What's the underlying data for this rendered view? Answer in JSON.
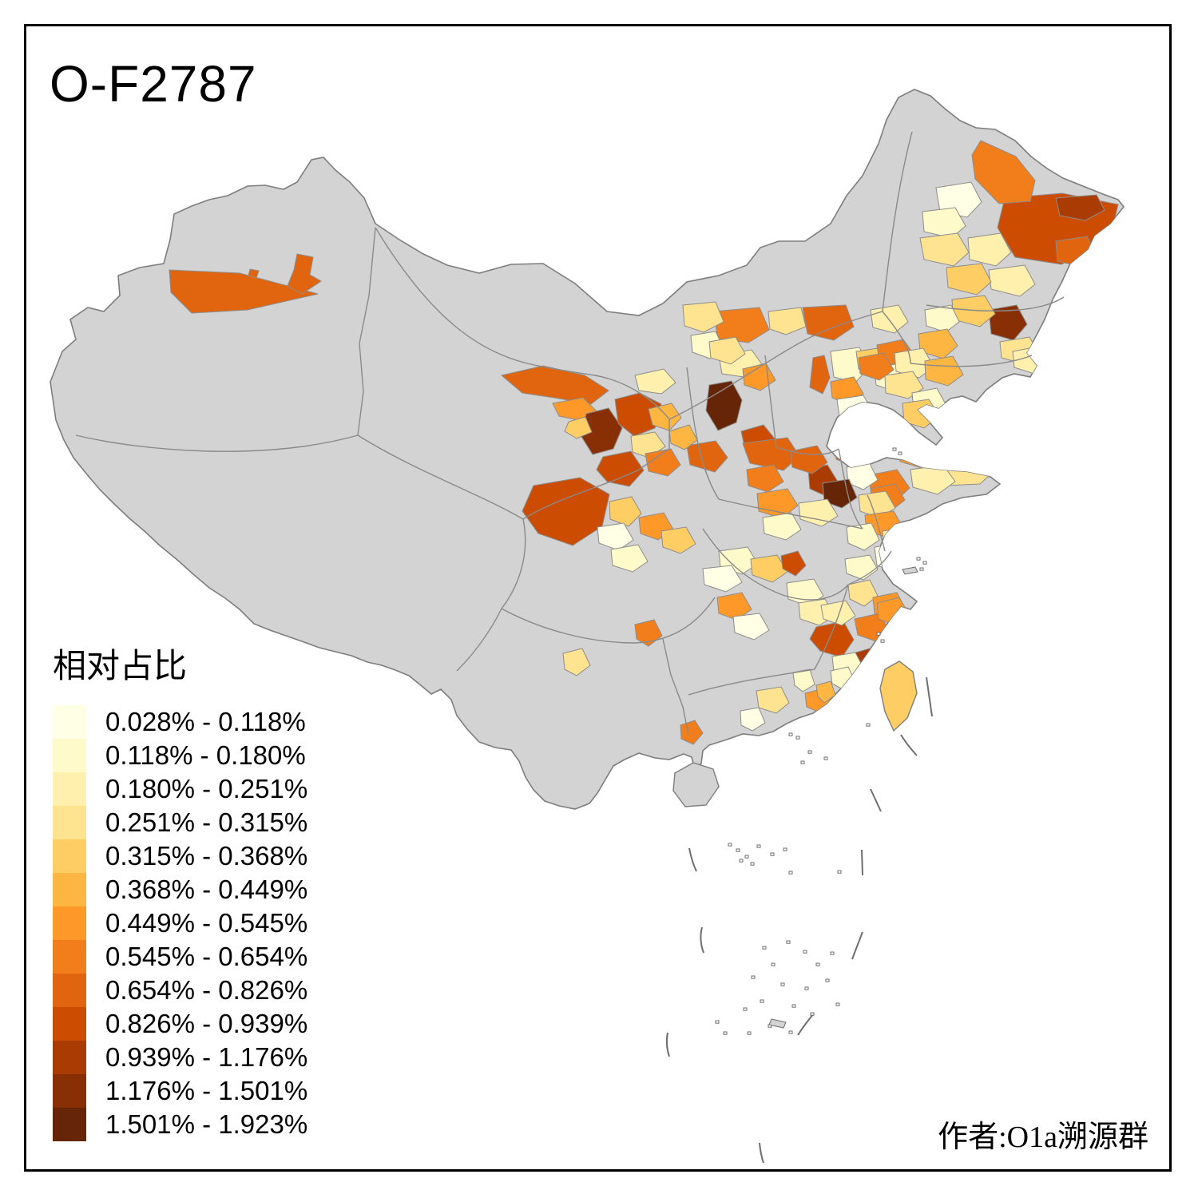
{
  "title": "O-F2787",
  "legend": {
    "title": "相对占比",
    "items": [
      {
        "label": "0.028% - 0.118%",
        "color": "#FFFFE5"
      },
      {
        "label": "0.118% - 0.180%",
        "color": "#FFFACA"
      },
      {
        "label": "0.180% - 0.251%",
        "color": "#FFF0AE"
      },
      {
        "label": "0.251% - 0.315%",
        "color": "#FEE391"
      },
      {
        "label": "0.315% - 0.368%",
        "color": "#FECE65"
      },
      {
        "label": "0.368% - 0.449%",
        "color": "#FEB642"
      },
      {
        "label": "0.449% - 0.545%",
        "color": "#FE9929"
      },
      {
        "label": "0.545% - 0.654%",
        "color": "#F27E1B"
      },
      {
        "label": "0.654% - 0.826%",
        "color": "#E1640E"
      },
      {
        "label": "0.826% - 0.939%",
        "color": "#CC4C02"
      },
      {
        "label": "0.939% - 1.176%",
        "color": "#AA3C03"
      },
      {
        "label": "1.176% - 1.501%",
        "color": "#882F05"
      },
      {
        "label": "1.501% - 1.923%",
        "color": "#662506"
      }
    ]
  },
  "attribution": "作者:O1a溯源群",
  "chart_data": {
    "type": "choropleth_map",
    "region": "China, prefecture-level divisions",
    "title": "O-F2787",
    "legend_title": "相对占比",
    "unit": "%",
    "class_breaks_percent": [
      0.028,
      0.118,
      0.18,
      0.251,
      0.315,
      0.368,
      0.449,
      0.545,
      0.654,
      0.826,
      0.939,
      1.176,
      1.501,
      1.923
    ],
    "class_labels": [
      "0.028% - 0.118%",
      "0.118% - 0.180%",
      "0.180% - 0.251%",
      "0.251% - 0.315%",
      "0.315% - 0.368%",
      "0.368% - 0.449%",
      "0.449% - 0.545%",
      "0.545% - 0.654%",
      "0.654% - 0.826%",
      "0.826% - 0.939%",
      "0.939% - 1.176%",
      "1.176% - 1.501%",
      "1.501% - 1.923%"
    ],
    "palette": [
      "#FFFFE5",
      "#FFFACA",
      "#FFF0AE",
      "#FEE391",
      "#FECE65",
      "#FEB642",
      "#FE9929",
      "#F27E1B",
      "#E1640E",
      "#CC4C02",
      "#AA3C03",
      "#882F05",
      "#662506"
    ],
    "no_data_color": "#D3D3D3",
    "boundary_color": "#8C8C8C",
    "background_color": "#FFFFFF",
    "legend_position": "bottom-left",
    "attribution": "作者:O1a溯源群"
  }
}
